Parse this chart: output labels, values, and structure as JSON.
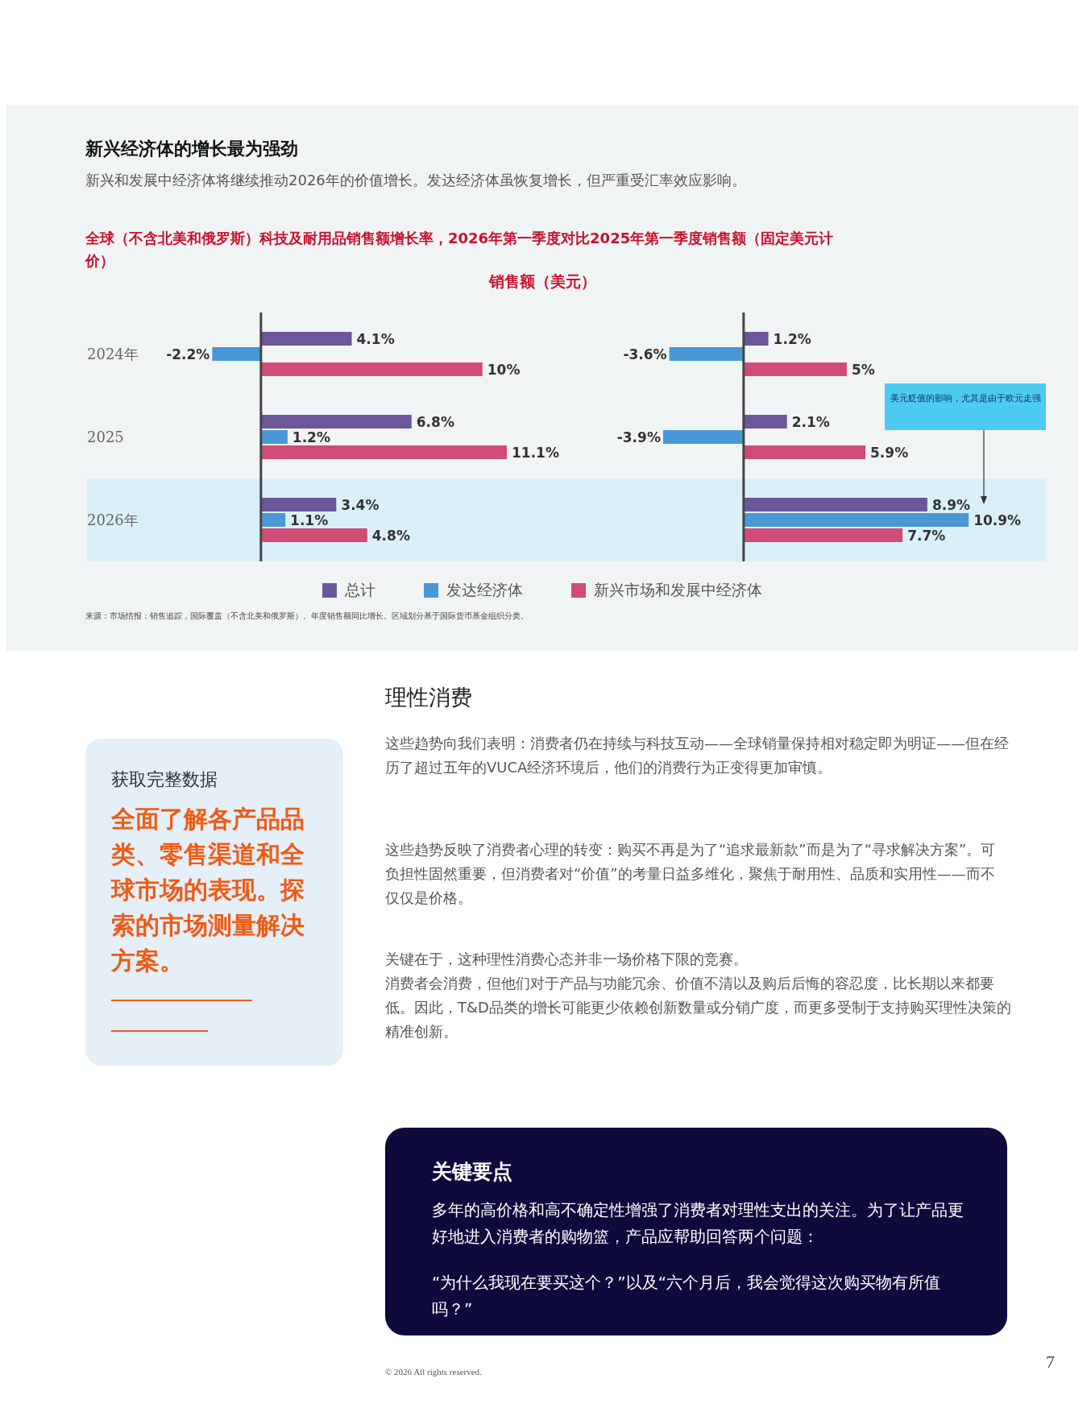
{
  "chart_data": [
    {
      "type": "bar",
      "orientation": "horizontal",
      "title": "新兴经济体的增长最为强劲",
      "subtitle": "新兴和发展中经济体将继续推动2026年的价值增长。发达经济体虽恢复增长，但严重受汇率效应影响。",
      "annotations": [
        "全球（不含北美和俄罗斯）科技及耐用品销售额增长率，2026年第一季度对比2025年第一季度销售额（固定美元计价）",
        "来源：市场情报：销售追踪，国际覆盖（不含北美和俄罗斯）。年度销售额同比增长。区域划分基于国际货币基金组织分类。"
      ],
      "categories": [
        "2024年",
        "2025",
        "2026年"
      ],
      "tick_labels": "y",
      "legend": "bottom",
      "bands": [
        {
          "axis": "y",
          "from": "2026年",
          "to": "2026年",
          "color": "#daf0f9"
        }
      ],
      "series": [
        {
          "name": "总计",
          "color": "#6b5799",
          "values": [
            4.1,
            6.8,
            3.4
          ],
          "value_labels": [
            "4.1%",
            "6.8%",
            "3.4%"
          ]
        },
        {
          "name": "发达经济体",
          "color": "#4a97d6",
          "values": [
            -2.2,
            1.2,
            1.1
          ],
          "value_labels": [
            "-2.2%",
            "1.2%",
            "1.1%"
          ]
        },
        {
          "name": "新兴市场和发展中经济体",
          "color": "#d14b77",
          "values": [
            10,
            11.1,
            4.8
          ],
          "value_labels": [
            "10%",
            "11.1%",
            "4.8%"
          ]
        }
      ]
    },
    {
      "type": "bar",
      "orientation": "horizontal",
      "title": "销售额（美元）",
      "annotations": [
        "美元贬值的影响，尤其是由于欧元走强"
      ],
      "categories": [
        "2024年",
        "2025",
        "2026年"
      ],
      "tick_labels": false,
      "bands": [
        {
          "axis": "y",
          "from": "2026年",
          "to": "2026年",
          "color": "#daf0f9"
        }
      ],
      "series": [
        {
          "color": "#6b5799",
          "values": [
            1.2,
            2.1,
            8.9
          ],
          "value_labels": [
            "1.2%",
            "2.1%",
            "8.9%"
          ]
        },
        {
          "color": "#4a97d6",
          "values": [
            -3.6,
            -3.9,
            10.9
          ],
          "value_labels": [
            "-3.6%",
            "-3.9%",
            "10.9%"
          ]
        },
        {
          "color": "#d14b77",
          "values": [
            5,
            5.9,
            7.7
          ],
          "value_labels": [
            "5%",
            "5.9%",
            "7.7%"
          ]
        }
      ]
    },
    {
      "type": "other",
      "annotations": [
        "理性消费",
        "这些趋势向我们表明：消费者仍在持续与科技互动——全球销量保持相对稳定即为明证——但在经历了超过五年的VUCA经济环境后，他们的消费行为正变得更加审慎。",
        "这些趋势反映了消费者心理的转变：购买不再是为了“追求最新款”而是为了“寻求解决方案”。可负担性固然重要，但消费者对“价值”的考量日益多维化，聚焦于耐用性、品质和实用性——而不仅仅是价格。",
        "关键在于，这种理性消费心态并非一场价格下限的竞赛。",
        "消费者会消费，但他们对于产品与功能冗余、价值不清以及购后后悔的容忍度，比长期以来都要低。因此，T&D品类的增长可能更少依赖创新数量或分销广度，而更多受制于支持购买理性决策的精准创新。",
        "获取完整数据",
        "全面了解各产品品类、零售渠道和全球市场的表现。探索的市场测量解决方案。",
        "关键要点",
        "多年的高价格和高不确定性增强了消费者对理性支出的关注。为了让产品更好地进入消费者的购物篮，产品应帮助回答两个问题：",
        "“为什么我现在要买这个？”以及“六个月后，我会觉得这次购买物有所值吗？”",
        "© 2026 All rights reserved.",
        "7"
      ]
    }
  ]
}
